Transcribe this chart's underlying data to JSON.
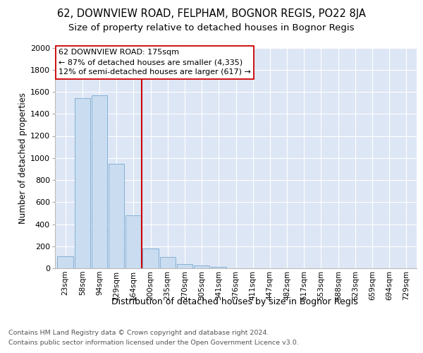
{
  "title1": "62, DOWNVIEW ROAD, FELPHAM, BOGNOR REGIS, PO22 8JA",
  "title2": "Size of property relative to detached houses in Bognor Regis",
  "xlabel": "Distribution of detached houses by size in Bognor Regis",
  "ylabel": "Number of detached properties",
  "categories": [
    "23sqm",
    "58sqm",
    "94sqm",
    "129sqm",
    "164sqm",
    "200sqm",
    "235sqm",
    "270sqm",
    "305sqm",
    "341sqm",
    "376sqm",
    "411sqm",
    "447sqm",
    "482sqm",
    "517sqm",
    "553sqm",
    "588sqm",
    "623sqm",
    "659sqm",
    "694sqm",
    "729sqm"
  ],
  "values": [
    110,
    1540,
    1570,
    950,
    480,
    180,
    100,
    40,
    25,
    15,
    0,
    0,
    0,
    0,
    0,
    0,
    0,
    0,
    0,
    0,
    0
  ],
  "bar_color": "#c9dcf0",
  "bar_edge_color": "#7aaad0",
  "vline_x": 4.5,
  "vline_color": "#cc0000",
  "annotation_line1": "62 DOWNVIEW ROAD: 175sqm",
  "annotation_line2": "← 87% of detached houses are smaller (4,335)",
  "annotation_line3": "12% of semi-detached houses are larger (617) →",
  "annotation_box_color": "#ffffff",
  "annotation_box_edge": "#cc0000",
  "ylim": [
    0,
    2000
  ],
  "yticks": [
    0,
    200,
    400,
    600,
    800,
    1000,
    1200,
    1400,
    1600,
    1800,
    2000
  ],
  "background_color": "#dde6f5",
  "footer1": "Contains HM Land Registry data © Crown copyright and database right 2024.",
  "footer2": "Contains public sector information licensed under the Open Government Licence v3.0.",
  "title1_fontsize": 10.5,
  "title2_fontsize": 9.5,
  "xlabel_fontsize": 9,
  "ylabel_fontsize": 8.5,
  "tick_fontsize": 7.5,
  "ytick_fontsize": 8,
  "footer_fontsize": 6.8
}
